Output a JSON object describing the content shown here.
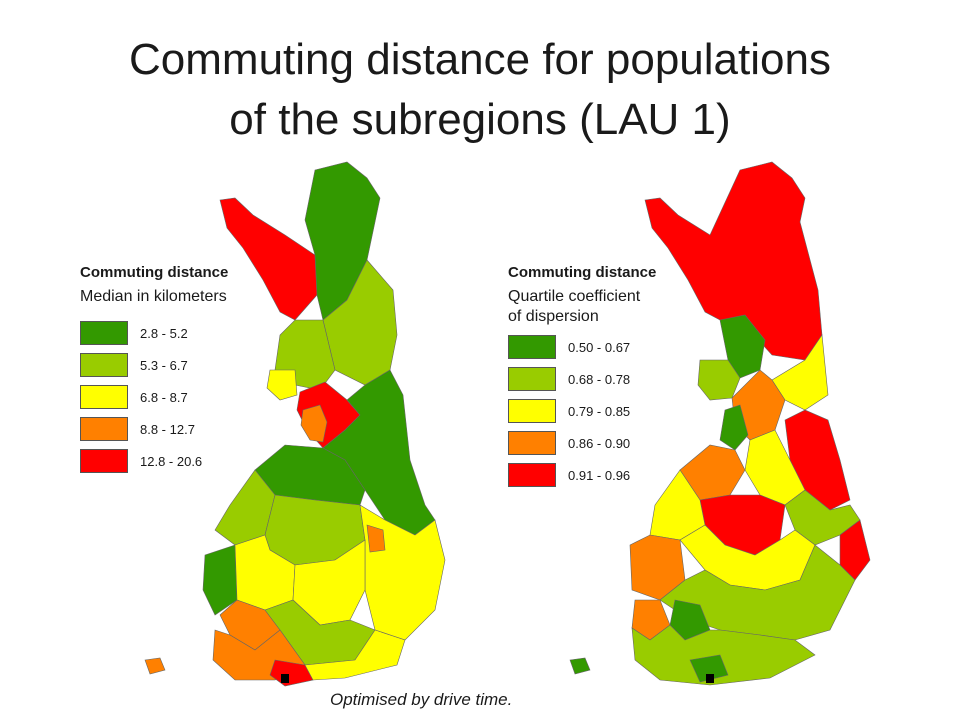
{
  "title_line1": "Commuting distance for populations",
  "title_line2": "of the subregions (LAU 1)",
  "caption": "Optimised by drive time.",
  "colors": {
    "dark_green": "#339900",
    "light_green": "#99cc00",
    "yellow": "#ffff00",
    "orange": "#ff8000",
    "red": "#ff0000"
  },
  "legend_left": {
    "heading": "Commuting distance",
    "subtitle": "Median in kilometers",
    "items": [
      {
        "label": "2.8 - 5.2",
        "color": "#339900"
      },
      {
        "label": "5.3 - 6.7",
        "color": "#99cc00"
      },
      {
        "label": "6.8 - 8.7",
        "color": "#ffff00"
      },
      {
        "label": "8.8 - 12.7",
        "color": "#ff8000"
      },
      {
        "label": "12.8 - 20.6",
        "color": "#ff0000"
      }
    ]
  },
  "legend_right": {
    "heading": "Commuting distance",
    "subtitle": "Quartile coefficient\nof dispersion",
    "items": [
      {
        "label": "0.50 - 0.67",
        "color": "#339900"
      },
      {
        "label": "0.68 - 0.78",
        "color": "#99cc00"
      },
      {
        "label": "0.79 - 0.85",
        "color": "#ffff00"
      },
      {
        "label": "0.86 - 0.90",
        "color": "#ff8000"
      },
      {
        "label": "0.91 - 0.96",
        "color": "#ff0000"
      }
    ]
  }
}
